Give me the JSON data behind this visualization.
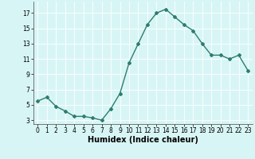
{
  "xlabel": "Humidex (Indice chaleur)",
  "x_values": [
    0,
    1,
    2,
    3,
    4,
    5,
    6,
    7,
    8,
    9,
    10,
    11,
    12,
    13,
    14,
    15,
    16,
    17,
    18,
    19,
    20,
    21,
    22,
    23
  ],
  "y_values": [
    5.5,
    6.0,
    4.8,
    4.2,
    3.5,
    3.5,
    3.3,
    3.0,
    4.5,
    6.5,
    10.5,
    13.0,
    15.5,
    17.0,
    17.5,
    16.5,
    15.5,
    14.7,
    13.0,
    11.5,
    11.5,
    11.0,
    11.5,
    9.5
  ],
  "ylim": [
    2.5,
    18.5
  ],
  "xlim": [
    -0.5,
    23.5
  ],
  "yticks": [
    3,
    5,
    7,
    9,
    11,
    13,
    15,
    17
  ],
  "xticks": [
    0,
    1,
    2,
    3,
    4,
    5,
    6,
    7,
    8,
    9,
    10,
    11,
    12,
    13,
    14,
    15,
    16,
    17,
    18,
    19,
    20,
    21,
    22,
    23
  ],
  "line_color": "#2e7d6e",
  "marker": "D",
  "marker_size": 2.0,
  "bg_color": "#d8f5f5",
  "grid_color": "#ffffff",
  "line_width": 1.0,
  "tick_fontsize": 5.5,
  "xlabel_fontsize": 7.0
}
